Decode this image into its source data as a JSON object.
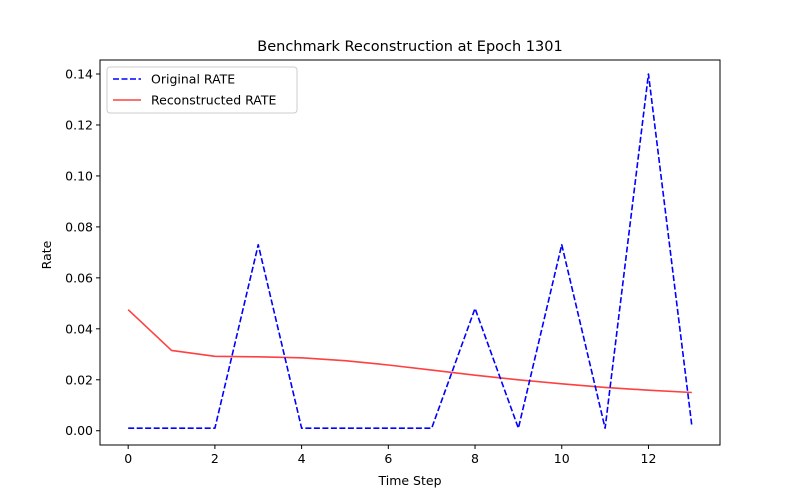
{
  "chart_data": {
    "type": "line",
    "title": "Benchmark Reconstruction at Epoch 1301",
    "xlabel": "Time Step",
    "ylabel": "Rate",
    "xlim": [
      -0.65,
      13.65
    ],
    "ylim": [
      -0.0056,
      0.1455
    ],
    "x_ticks": [
      0,
      2,
      4,
      6,
      8,
      10,
      12
    ],
    "x_tick_labels": [
      "0",
      "2",
      "4",
      "6",
      "8",
      "10",
      "12"
    ],
    "y_ticks": [
      0.0,
      0.02,
      0.04,
      0.06,
      0.08,
      0.1,
      0.12,
      0.14
    ],
    "y_tick_labels": [
      "0.00",
      "0.02",
      "0.04",
      "0.06",
      "0.08",
      "0.10",
      "0.12",
      "0.14"
    ],
    "grid": false,
    "legend_position": "upper-left",
    "x": [
      0,
      1,
      2,
      3,
      4,
      5,
      6,
      7,
      8,
      9,
      10,
      11,
      12,
      13
    ],
    "series": [
      {
        "name": "Original RATE",
        "color": "#0000ff",
        "style": "dashed",
        "values": [
          0.001,
          0.001,
          0.001,
          0.073,
          0.001,
          0.001,
          0.001,
          0.001,
          0.048,
          0.001,
          0.073,
          0.001,
          0.14,
          0.002
        ]
      },
      {
        "name": "Reconstructed RATE",
        "color": "#ff4040",
        "style": "solid",
        "values": [
          0.0475,
          0.0315,
          0.0292,
          0.029,
          0.0286,
          0.0275,
          0.0258,
          0.0238,
          0.0218,
          0.02,
          0.0184,
          0.017,
          0.0159,
          0.015
        ]
      }
    ]
  }
}
